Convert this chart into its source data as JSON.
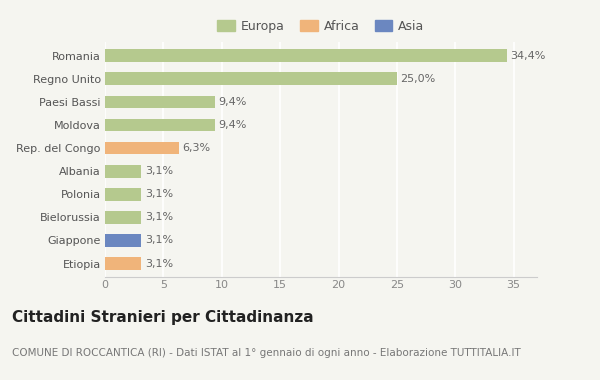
{
  "categories": [
    "Romania",
    "Regno Unito",
    "Paesi Bassi",
    "Moldova",
    "Rep. del Congo",
    "Albania",
    "Polonia",
    "Bielorussia",
    "Giappone",
    "Etiopia"
  ],
  "values": [
    34.4,
    25.0,
    9.4,
    9.4,
    6.3,
    3.1,
    3.1,
    3.1,
    3.1,
    3.1
  ],
  "labels": [
    "34,4%",
    "25,0%",
    "9,4%",
    "9,4%",
    "6,3%",
    "3,1%",
    "3,1%",
    "3,1%",
    "3,1%",
    "3,1%"
  ],
  "colors": [
    "#b5c98e",
    "#b5c98e",
    "#b5c98e",
    "#b5c98e",
    "#f0b47a",
    "#b5c98e",
    "#b5c98e",
    "#b5c98e",
    "#6b87c0",
    "#f0b47a"
  ],
  "legend_labels": [
    "Europa",
    "Africa",
    "Asia"
  ],
  "legend_colors": [
    "#b5c98e",
    "#f0b47a",
    "#6b87c0"
  ],
  "xlim": [
    0,
    37
  ],
  "xticks": [
    0,
    5,
    10,
    15,
    20,
    25,
    30,
    35
  ],
  "title": "Cittadini Stranieri per Cittadinanza",
  "subtitle": "COMUNE DI ROCCANTICA (RI) - Dati ISTAT al 1° gennaio di ogni anno - Elaborazione TUTTITALIA.IT",
  "background_color": "#f5f5f0",
  "bar_height": 0.55,
  "title_fontsize": 11,
  "subtitle_fontsize": 7.5,
  "label_fontsize": 8,
  "tick_fontsize": 8,
  "legend_fontsize": 9
}
